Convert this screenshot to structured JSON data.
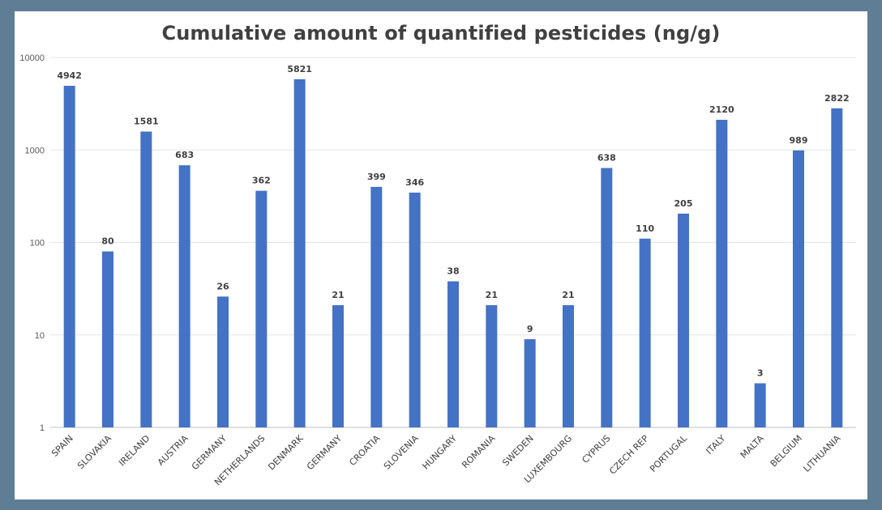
{
  "chart_data": {
    "type": "bar",
    "title": "Cumulative amount of quantified pesticides (ng/g)",
    "xlabel": "",
    "ylabel": "",
    "y_scale": "log",
    "ylim": [
      1,
      10000
    ],
    "yticks": [
      "1",
      "10",
      "100",
      "1000",
      "10000"
    ],
    "grid": true,
    "bar_color": "#4472c4",
    "categories": [
      "SPAIN",
      "SLOVAKIA",
      "IRELAND",
      "AUSTRIA",
      "GERMANY",
      "NETHERLANDS",
      "DENMARK",
      "GERMANY",
      "CROATIA",
      "SLOVENIA",
      "HUNGARY",
      "ROMANIA",
      "SWEDEN",
      "LUXEMBOURG",
      "CYPRUS",
      "CZECH REP",
      "PORTUGAL",
      "ITALY",
      "MALTA",
      "BELGIUM",
      "LITHUANIA"
    ],
    "values": [
      4942,
      80,
      1581,
      683,
      26,
      362,
      5821,
      21,
      399,
      346,
      38,
      21,
      9,
      21,
      638,
      110,
      205,
      2120,
      3,
      989,
      2822
    ]
  }
}
